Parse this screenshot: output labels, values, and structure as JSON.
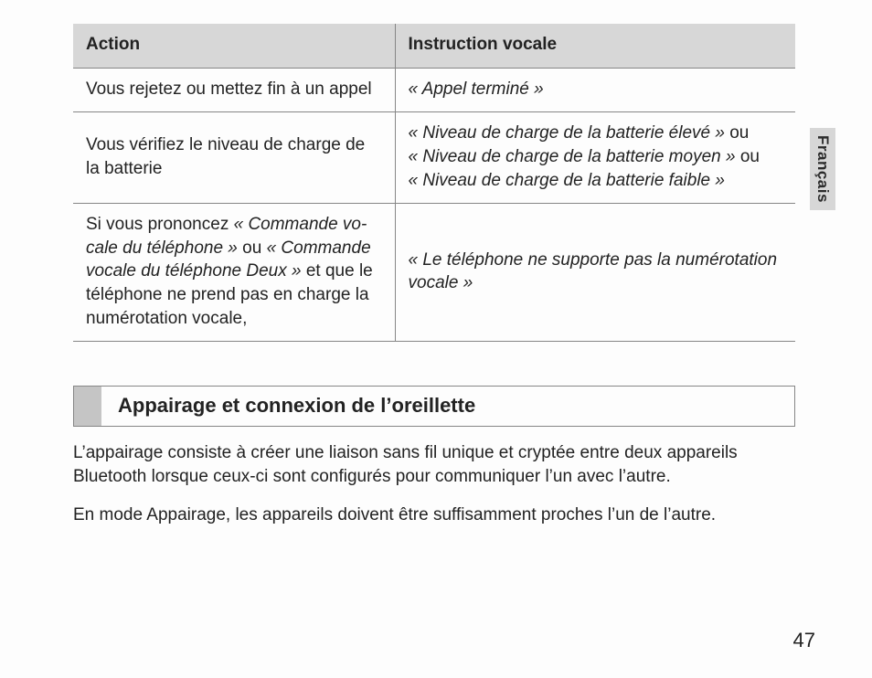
{
  "language_tab": "Français",
  "table": {
    "columns": [
      "Action",
      "Instruction vocale"
    ],
    "rows": [
      {
        "action_plain": "Vous rejetez ou mettez fin à un appel",
        "instruction_italic": "« Appel terminé »"
      },
      {
        "action_plain": "Vous vérifiez le niveau de charge de la batterie",
        "instr_line1_italic": "« Niveau de charge de la batterie élevé »",
        "instr_line1_tail": " ou",
        "instr_line2_italic": "« Niveau de charge de la batterie moyen »",
        "instr_line2_tail": " ou",
        "instr_line3_italic": "« Niveau de charge de la batterie faible »"
      },
      {
        "action_pre": "Si vous prononcez ",
        "action_it1": "« Commande vo­cale du téléphone »",
        "action_mid": " ou ",
        "action_it2": "« Commande vocale du téléphone Deux »",
        "action_post": " et que le téléphone ne prend pas en charge la numérotation vocale,",
        "instruction_italic": "« Le téléphone ne supporte pas la numérotation vocale »"
      }
    ]
  },
  "section_title": "Appairage et connexion de l’oreillette",
  "paragraphs": [
    "L’appairage consiste à créer une liaison sans fil unique et cryptée entre deux appareils Bluetooth lorsque ceux-ci sont configurés pour communiquer l’un avec l’autre.",
    "En mode Appairage, les appareils doivent être suffisamment proches l’un de l’autre."
  ],
  "page_number": "47"
}
